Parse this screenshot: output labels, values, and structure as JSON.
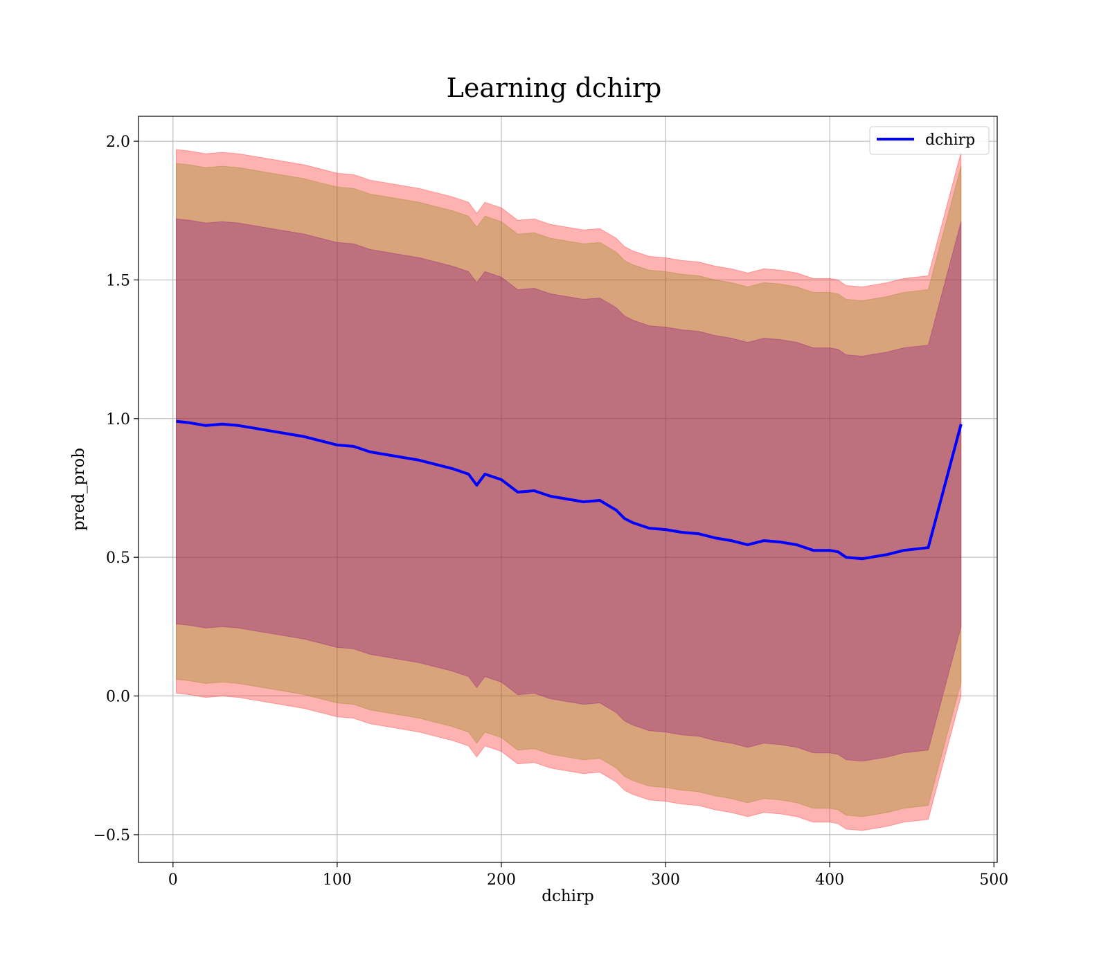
{
  "chart_data": {
    "type": "line",
    "title": "Learning dchirp",
    "xlabel": "dchirp",
    "ylabel": "pred_prob",
    "xlim": [
      -21,
      502
    ],
    "ylim": [
      -0.6,
      2.09
    ],
    "xticks": [
      0,
      100,
      200,
      300,
      400,
      500
    ],
    "xtick_labels": [
      "0",
      "100",
      "200",
      "300",
      "400",
      "500"
    ],
    "yticks": [
      -0.5,
      0.0,
      0.5,
      1.0,
      1.5,
      2.0
    ],
    "ytick_labels": [
      "−0.5",
      "0.0",
      "0.5",
      "1.0",
      "1.5",
      "2.0"
    ],
    "grid": true,
    "legend_position": "top-right",
    "colors": {
      "line": "#0000ff",
      "band_outer": "#ff0000",
      "band_mid": "#808000",
      "band_inner": "#800080"
    },
    "series": [
      {
        "name": "dchirp",
        "x": [
          2,
          10,
          20,
          30,
          40,
          50,
          60,
          70,
          80,
          90,
          100,
          110,
          120,
          130,
          140,
          150,
          160,
          170,
          180,
          185,
          190,
          200,
          210,
          220,
          230,
          240,
          250,
          260,
          270,
          275,
          280,
          290,
          300,
          310,
          320,
          330,
          340,
          350,
          360,
          370,
          380,
          390,
          400,
          405,
          410,
          420,
          435,
          445,
          460,
          480
        ],
        "y": [
          0.99,
          0.985,
          0.975,
          0.98,
          0.975,
          0.965,
          0.955,
          0.945,
          0.935,
          0.92,
          0.905,
          0.9,
          0.88,
          0.87,
          0.86,
          0.85,
          0.835,
          0.82,
          0.8,
          0.76,
          0.8,
          0.78,
          0.735,
          0.74,
          0.72,
          0.71,
          0.7,
          0.705,
          0.67,
          0.64,
          0.625,
          0.605,
          0.6,
          0.59,
          0.585,
          0.57,
          0.56,
          0.545,
          0.56,
          0.555,
          0.545,
          0.525,
          0.525,
          0.52,
          0.5,
          0.495,
          0.51,
          0.525,
          0.535,
          0.98
        ]
      }
    ],
    "bands": [
      {
        "x": [
          2,
          10,
          20,
          30,
          40,
          50,
          60,
          70,
          80,
          90,
          100,
          110,
          120,
          130,
          140,
          150,
          160,
          170,
          180,
          185,
          190,
          200,
          210,
          220,
          230,
          240,
          250,
          260,
          270,
          275,
          280,
          290,
          300,
          310,
          320,
          330,
          340,
          350,
          360,
          370,
          380,
          390,
          400,
          405,
          410,
          420,
          435,
          445,
          460,
          480
        ],
        "outer_upper": [
          1.97,
          1.965,
          1.955,
          1.96,
          1.955,
          1.945,
          1.935,
          1.925,
          1.915,
          1.9,
          1.885,
          1.88,
          1.86,
          1.85,
          1.84,
          1.83,
          1.815,
          1.8,
          1.78,
          1.74,
          1.78,
          1.76,
          1.715,
          1.72,
          1.7,
          1.69,
          1.68,
          1.685,
          1.65,
          1.62,
          1.605,
          1.585,
          1.58,
          1.57,
          1.565,
          1.55,
          1.54,
          1.525,
          1.54,
          1.535,
          1.525,
          1.505,
          1.505,
          1.5,
          1.48,
          1.475,
          1.49,
          1.505,
          1.515,
          1.96
        ],
        "outer_lower": [
          0.01,
          0.005,
          -0.005,
          0.0,
          -0.005,
          -0.015,
          -0.025,
          -0.035,
          -0.045,
          -0.06,
          -0.075,
          -0.08,
          -0.1,
          -0.11,
          -0.12,
          -0.13,
          -0.145,
          -0.16,
          -0.18,
          -0.22,
          -0.18,
          -0.2,
          -0.245,
          -0.24,
          -0.26,
          -0.27,
          -0.28,
          -0.275,
          -0.31,
          -0.34,
          -0.355,
          -0.375,
          -0.38,
          -0.39,
          -0.395,
          -0.41,
          -0.42,
          -0.435,
          -0.42,
          -0.425,
          -0.435,
          -0.455,
          -0.455,
          -0.46,
          -0.48,
          -0.485,
          -0.47,
          -0.455,
          -0.445,
          0.0
        ],
        "mid_upper": [
          1.92,
          1.915,
          1.905,
          1.91,
          1.905,
          1.895,
          1.885,
          1.875,
          1.865,
          1.85,
          1.835,
          1.83,
          1.81,
          1.8,
          1.79,
          1.78,
          1.765,
          1.75,
          1.73,
          1.69,
          1.73,
          1.71,
          1.665,
          1.67,
          1.65,
          1.64,
          1.63,
          1.635,
          1.6,
          1.57,
          1.555,
          1.535,
          1.53,
          1.52,
          1.515,
          1.5,
          1.49,
          1.475,
          1.49,
          1.485,
          1.475,
          1.455,
          1.455,
          1.45,
          1.43,
          1.425,
          1.44,
          1.455,
          1.465,
          1.91
        ],
        "mid_lower": [
          0.06,
          0.055,
          0.045,
          0.05,
          0.045,
          0.035,
          0.025,
          0.015,
          0.005,
          -0.01,
          -0.025,
          -0.03,
          -0.05,
          -0.06,
          -0.07,
          -0.08,
          -0.095,
          -0.11,
          -0.13,
          -0.17,
          -0.13,
          -0.15,
          -0.195,
          -0.19,
          -0.21,
          -0.22,
          -0.23,
          -0.225,
          -0.26,
          -0.29,
          -0.305,
          -0.325,
          -0.33,
          -0.34,
          -0.345,
          -0.36,
          -0.37,
          -0.385,
          -0.37,
          -0.375,
          -0.385,
          -0.405,
          -0.405,
          -0.41,
          -0.43,
          -0.435,
          -0.42,
          -0.405,
          -0.395,
          0.05
        ],
        "inner_upper": [
          1.72,
          1.715,
          1.705,
          1.71,
          1.705,
          1.695,
          1.685,
          1.675,
          1.665,
          1.65,
          1.635,
          1.63,
          1.61,
          1.6,
          1.59,
          1.58,
          1.565,
          1.55,
          1.53,
          1.49,
          1.53,
          1.51,
          1.465,
          1.47,
          1.45,
          1.44,
          1.43,
          1.435,
          1.4,
          1.37,
          1.355,
          1.335,
          1.33,
          1.32,
          1.315,
          1.3,
          1.29,
          1.275,
          1.29,
          1.285,
          1.275,
          1.255,
          1.255,
          1.25,
          1.23,
          1.225,
          1.24,
          1.255,
          1.265,
          1.71
        ],
        "inner_lower": [
          0.26,
          0.255,
          0.245,
          0.25,
          0.245,
          0.235,
          0.225,
          0.215,
          0.205,
          0.19,
          0.175,
          0.17,
          0.15,
          0.14,
          0.13,
          0.12,
          0.105,
          0.09,
          0.07,
          0.03,
          0.07,
          0.05,
          0.005,
          0.01,
          -0.01,
          -0.02,
          -0.03,
          -0.025,
          -0.06,
          -0.09,
          -0.105,
          -0.125,
          -0.13,
          -0.14,
          -0.145,
          -0.16,
          -0.17,
          -0.185,
          -0.17,
          -0.175,
          -0.185,
          -0.205,
          -0.205,
          -0.21,
          -0.23,
          -0.235,
          -0.22,
          -0.205,
          -0.195,
          0.25
        ]
      }
    ]
  }
}
